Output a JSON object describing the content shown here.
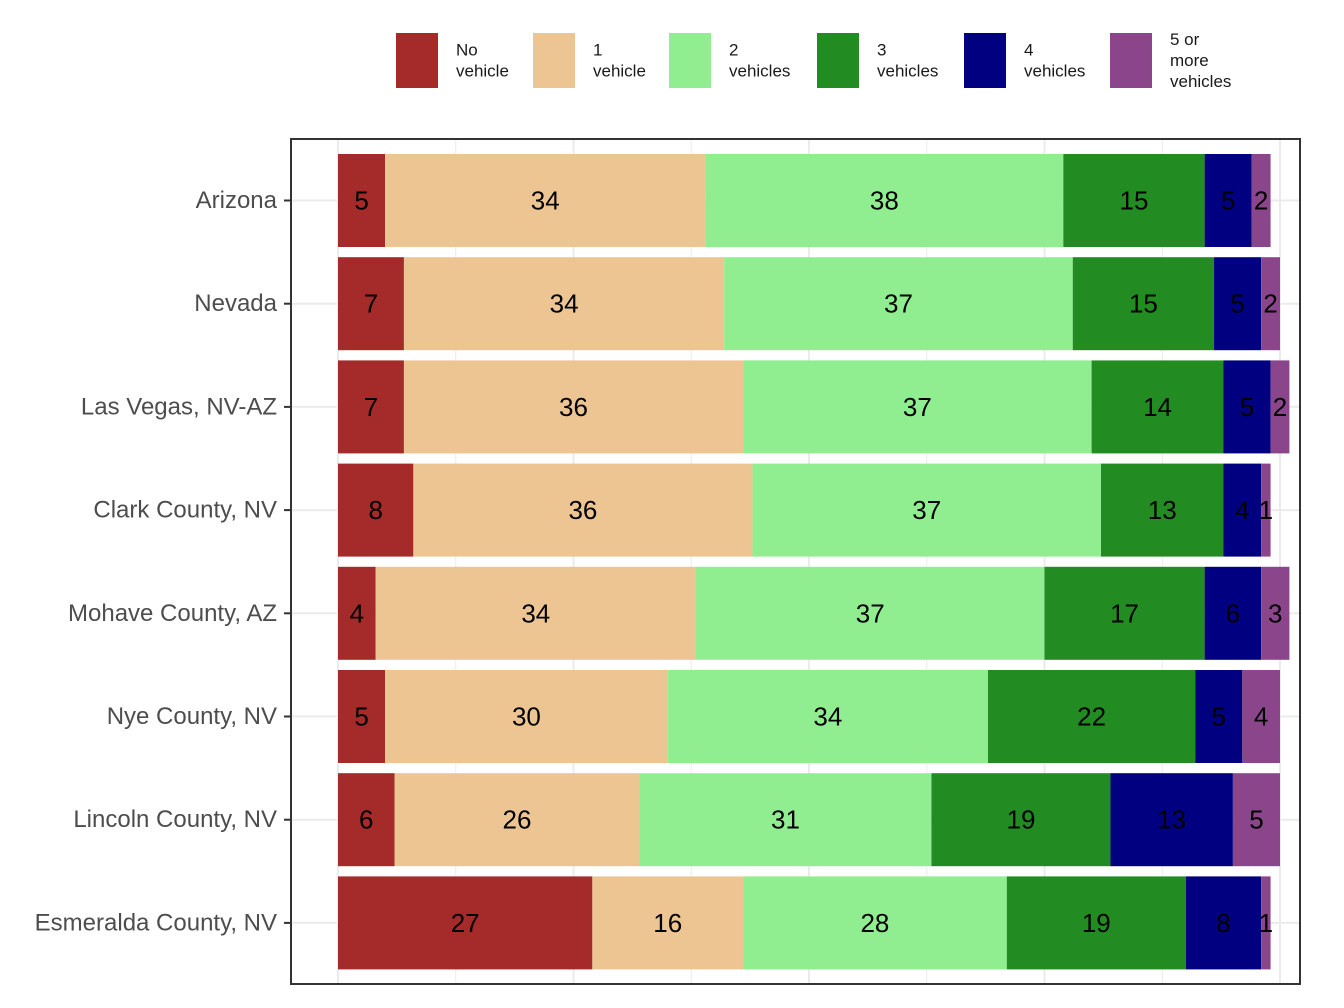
{
  "chart_data": {
    "type": "bar",
    "orientation": "horizontal",
    "stacked": true,
    "title": "",
    "xlabel": "",
    "ylabel": "",
    "xlim": [
      0,
      100
    ],
    "grid": true,
    "legend_position": "top",
    "categories": [
      "Arizona",
      "Nevada",
      "Las Vegas, NV-AZ",
      "Clark County, NV",
      "Mohave County, AZ",
      "Nye County, NV",
      "Lincoln County, NV",
      "Esmeralda County, NV"
    ],
    "series": [
      {
        "name": "No vehicle",
        "label_lines": [
          "No",
          "vehicle"
        ],
        "color": "#a52a2a",
        "values": [
          5,
          7,
          7,
          8,
          4,
          5,
          6,
          27
        ]
      },
      {
        "name": "1 vehicle",
        "label_lines": [
          "1",
          "vehicle"
        ],
        "color": "#edc592",
        "values": [
          34,
          34,
          36,
          36,
          34,
          30,
          26,
          16
        ]
      },
      {
        "name": "2 vehicles",
        "label_lines": [
          "2",
          "vehicles"
        ],
        "color": "#90ee90",
        "values": [
          38,
          37,
          37,
          37,
          37,
          34,
          31,
          28
        ]
      },
      {
        "name": "3 vehicles",
        "label_lines": [
          "3",
          "vehicles"
        ],
        "color": "#228b22",
        "values": [
          15,
          15,
          14,
          13,
          17,
          22,
          19,
          19
        ]
      },
      {
        "name": "4 vehicles",
        "label_lines": [
          "4",
          "vehicles"
        ],
        "color": "#000080",
        "values": [
          5,
          5,
          5,
          4,
          6,
          5,
          13,
          8
        ]
      },
      {
        "name": "5 or more vehicles",
        "label_lines": [
          "5 or",
          "more",
          "vehicles"
        ],
        "color": "#8b468b",
        "values": [
          2,
          2,
          2,
          1,
          3,
          4,
          5,
          1
        ]
      }
    ]
  }
}
